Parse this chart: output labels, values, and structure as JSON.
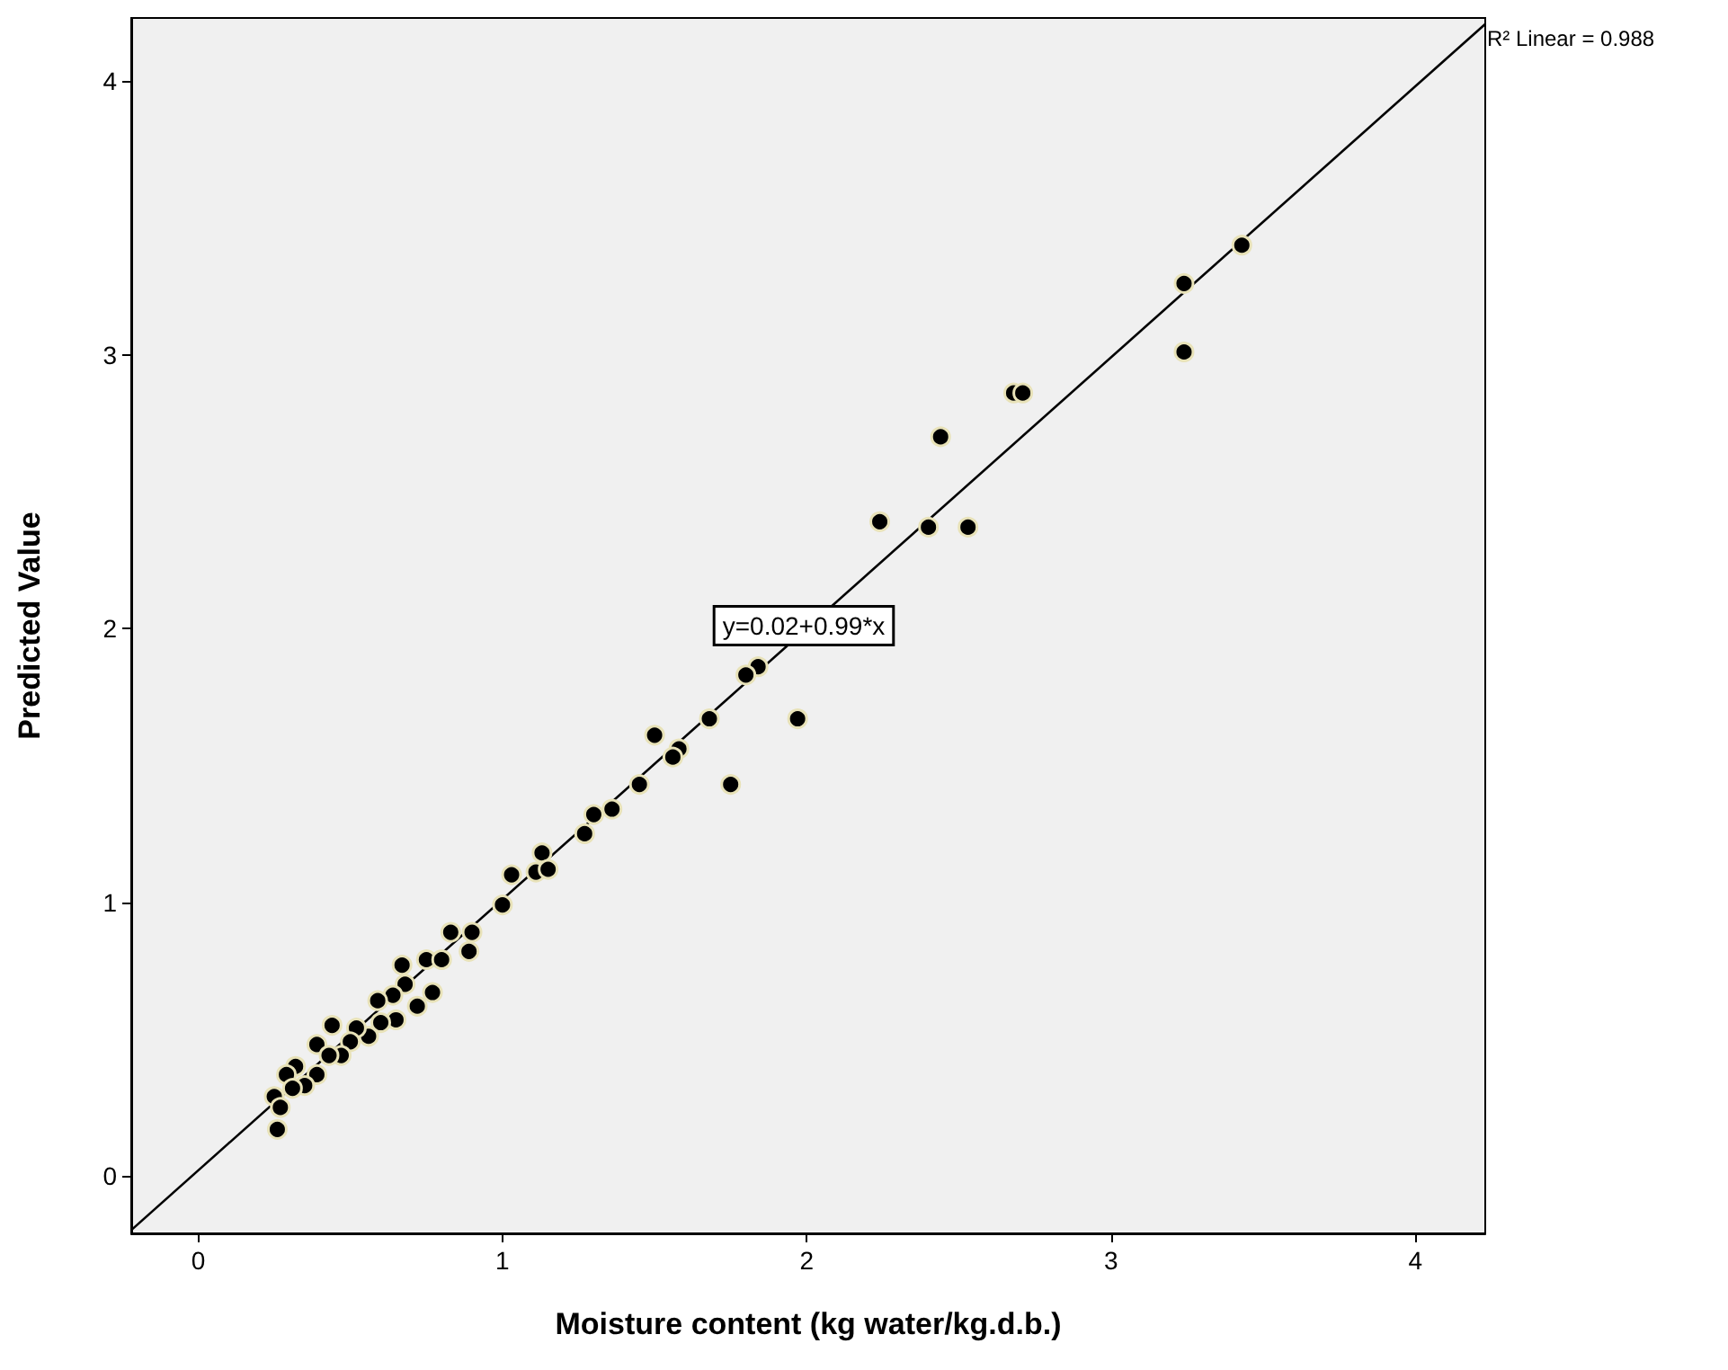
{
  "chart_data": {
    "type": "scatter",
    "xlabel": "Moisture content (kg water/kg.d.b.)",
    "ylabel": "Predicted Value",
    "xlim": [
      -0.22,
      4.23
    ],
    "ylim": [
      -0.21,
      4.23
    ],
    "xticks": [
      0,
      1,
      2,
      3,
      4
    ],
    "yticks": [
      0,
      1,
      2,
      3,
      4
    ],
    "grid": false,
    "marker": "circle",
    "annotations": [
      {
        "text": "R² Linear = 0.988",
        "x": 4.23,
        "y": 4.208
      },
      "y=0.02+0.99*x"
    ],
    "series": [
      {
        "color": "#000000",
        "x": [
          3.43,
          3.24,
          3.24,
          2.68,
          2.71,
          2.44,
          2.24,
          2.4,
          2.53,
          1.97,
          1.75,
          1.84,
          1.8,
          1.68,
          1.5,
          1.58,
          1.56,
          1.45,
          1.36,
          1.3,
          1.27,
          1.03,
          1.13,
          1.11,
          1.15,
          1.0,
          0.83,
          0.9,
          0.89,
          0.67,
          0.75,
          0.8,
          0.77,
          0.72,
          0.68,
          0.64,
          0.59,
          0.65,
          0.6,
          0.56,
          0.52,
          0.44,
          0.5,
          0.47,
          0.39,
          0.43,
          0.39,
          0.32,
          0.29,
          0.35,
          0.31,
          0.25,
          0.27,
          0.26
        ],
        "values": [
          3.4,
          3.26,
          3.01,
          2.86,
          2.86,
          2.7,
          2.39,
          2.37,
          2.37,
          1.67,
          1.43,
          1.86,
          1.83,
          1.67,
          1.61,
          1.56,
          1.53,
          1.43,
          1.34,
          1.32,
          1.25,
          1.1,
          1.18,
          1.11,
          1.12,
          0.99,
          0.89,
          0.89,
          0.82,
          0.77,
          0.79,
          0.79,
          0.67,
          0.62,
          0.7,
          0.66,
          0.64,
          0.57,
          0.56,
          0.51,
          0.54,
          0.55,
          0.49,
          0.44,
          0.48,
          0.44,
          0.37,
          0.4,
          0.37,
          0.33,
          0.32,
          0.29,
          0.25,
          0.17
        ]
      },
      {
        "type": "line",
        "color": "#000000",
        "marker": "none",
        "line_style": "solid",
        "x": [
          -0.22,
          4.23
        ],
        "values": [
          -0.198,
          4.208
        ]
      }
    ]
  }
}
